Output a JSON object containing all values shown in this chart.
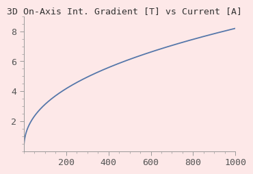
{
  "title": "3D On-Axis Int. Gradient [T] vs Current [A]",
  "background_color": "#fde8e8",
  "line_color": "#5577aa",
  "line_width": 1.3,
  "x_min": 0,
  "x_max": 1000,
  "y_min": 0,
  "y_max": 9,
  "x_ticks": [
    200,
    400,
    600,
    800,
    1000
  ],
  "y_ticks": [
    2,
    4,
    6,
    8
  ],
  "curve_scale": 8.2,
  "curve_power": 0.42,
  "font_size": 9.5,
  "title_fontsize": 9.5
}
